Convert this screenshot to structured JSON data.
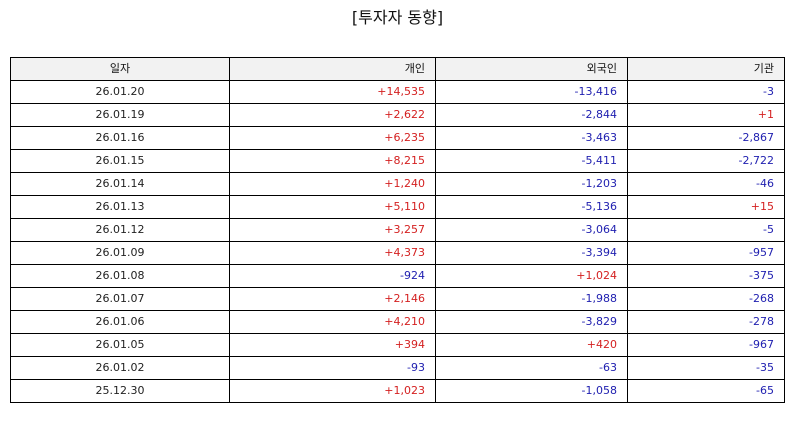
{
  "title": "[투자자 동향]",
  "colors": {
    "positive": "#d42020",
    "negative": "#2020b0",
    "header_bg": "#f2f2f2",
    "border": "#000000"
  },
  "table": {
    "headers": [
      "일자",
      "개인",
      "외국인",
      "기관"
    ],
    "rows": [
      {
        "date": "26.01.20",
        "individual": "+14,535",
        "foreign": "-13,416",
        "institution": "-3"
      },
      {
        "date": "26.01.19",
        "individual": "+2,622",
        "foreign": "-2,844",
        "institution": "+1"
      },
      {
        "date": "26.01.16",
        "individual": "+6,235",
        "foreign": "-3,463",
        "institution": "-2,867"
      },
      {
        "date": "26.01.15",
        "individual": "+8,215",
        "foreign": "-5,411",
        "institution": "-2,722"
      },
      {
        "date": "26.01.14",
        "individual": "+1,240",
        "foreign": "-1,203",
        "institution": "-46"
      },
      {
        "date": "26.01.13",
        "individual": "+5,110",
        "foreign": "-5,136",
        "institution": "+15"
      },
      {
        "date": "26.01.12",
        "individual": "+3,257",
        "foreign": "-3,064",
        "institution": "-5"
      },
      {
        "date": "26.01.09",
        "individual": "+4,373",
        "foreign": "-3,394",
        "institution": "-957"
      },
      {
        "date": "26.01.08",
        "individual": "-924",
        "foreign": "+1,024",
        "institution": "-375"
      },
      {
        "date": "26.01.07",
        "individual": "+2,146",
        "foreign": "-1,988",
        "institution": "-268"
      },
      {
        "date": "26.01.06",
        "individual": "+4,210",
        "foreign": "-3,829",
        "institution": "-278"
      },
      {
        "date": "26.01.05",
        "individual": "+394",
        "foreign": "+420",
        "institution": "-967"
      },
      {
        "date": "26.01.02",
        "individual": "-93",
        "foreign": "-63",
        "institution": "-35"
      },
      {
        "date": "25.12.30",
        "individual": "+1,023",
        "foreign": "-1,058",
        "institution": "-65"
      }
    ]
  }
}
